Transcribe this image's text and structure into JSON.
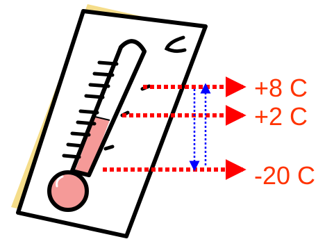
{
  "colors": {
    "background_card": "#f5dd8a",
    "card_fill": "#ffffff",
    "outline": "#000000",
    "mercury": "#f59a98",
    "arrow_red": "#ff0000",
    "arrow_blue": "#0000ff",
    "label_text": "#ff3300"
  },
  "labels": {
    "high": "+8 C",
    "mid": "+2 C",
    "low": "-20 C"
  },
  "icons": {
    "thermometer": "thermometer-icon",
    "arrow_right": "red-dotted-arrow-right",
    "arrow_up": "blue-dotted-arrow-up",
    "arrow_down": "blue-dotted-arrow-down"
  }
}
